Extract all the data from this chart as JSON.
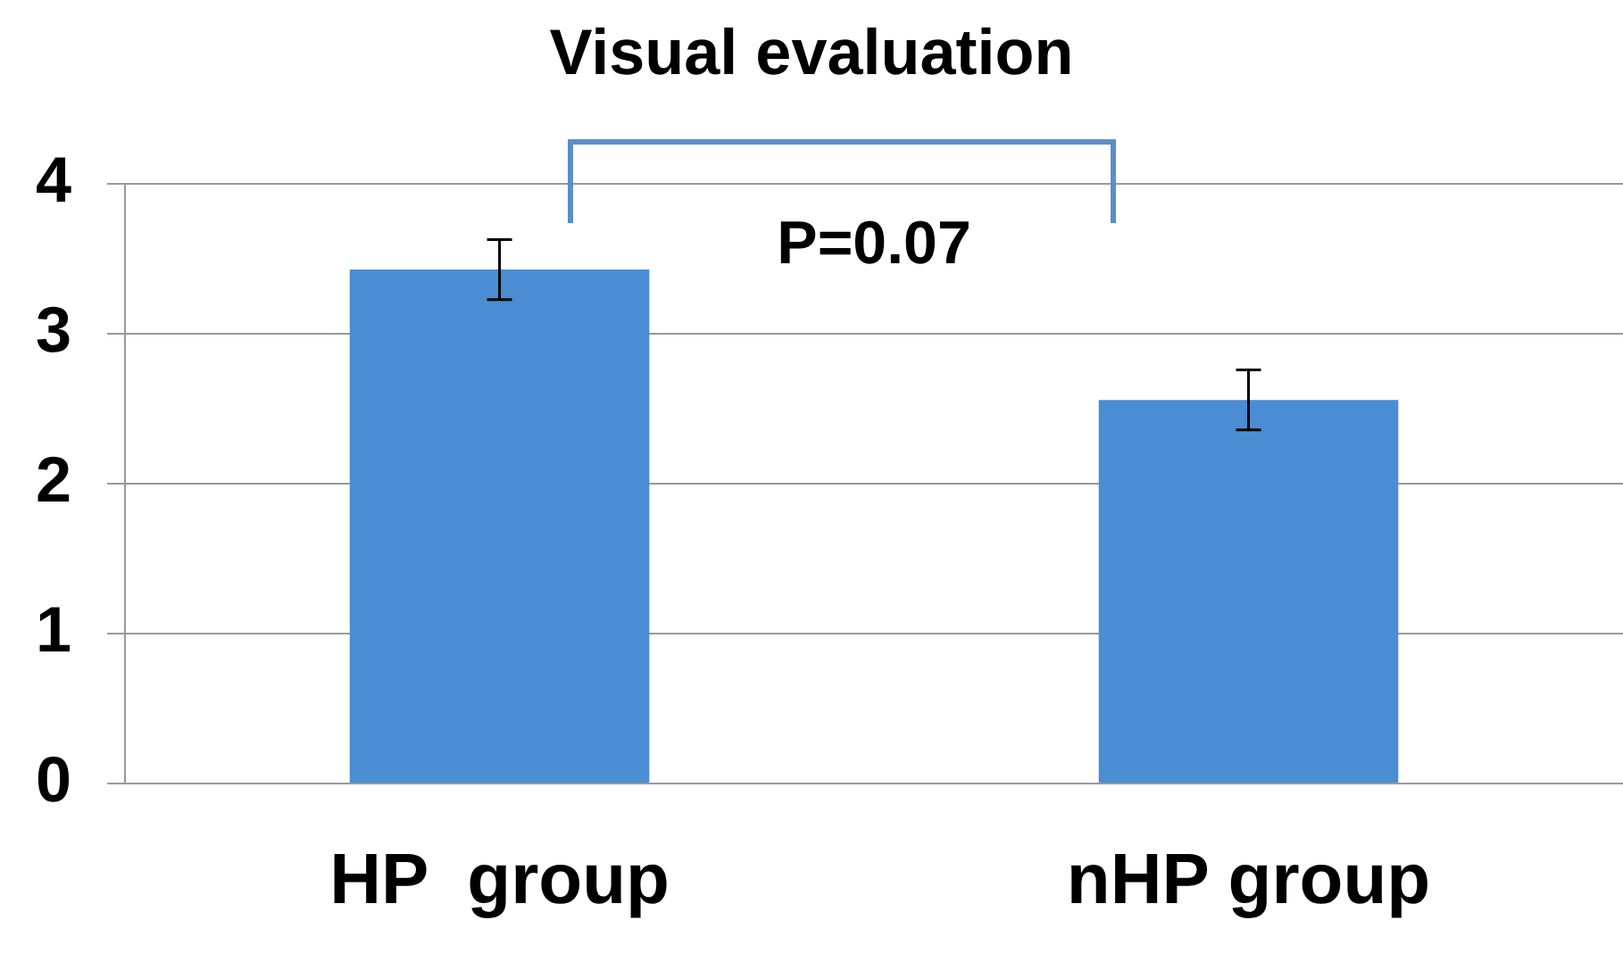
{
  "chart_data": {
    "type": "bar",
    "title": "Visual evaluation",
    "categories": [
      "HP  group",
      "nHP group"
    ],
    "values": [
      3.43,
      2.56
    ],
    "errors": [
      0.2,
      0.2
    ],
    "color": "#4a8dd3",
    "ylim": [
      0,
      4
    ],
    "yticks": [
      0,
      1,
      2,
      3,
      4
    ],
    "grid": "y",
    "annotations": [
      "P=0.07"
    ]
  }
}
